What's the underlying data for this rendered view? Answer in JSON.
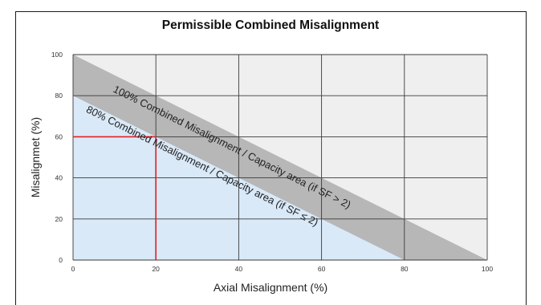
{
  "chart_data": {
    "type": "area",
    "title": "Permissible Combined Misalignment",
    "xlabel": "Axial Misalignment (%)",
    "ylabel": "Misalignmet (%)",
    "xlim": [
      0,
      100
    ],
    "ylim": [
      0,
      100
    ],
    "x_ticks": [
      0,
      20,
      40,
      60,
      80,
      100
    ],
    "y_ticks": [
      0,
      20,
      40,
      60,
      80,
      100
    ],
    "grid": true,
    "series": [
      {
        "name": "100% Combined Misalignment / Capacity area (if SF > 2)",
        "x": [
          0,
          100
        ],
        "y": [
          100,
          0
        ],
        "color": "#b7b7b7"
      },
      {
        "name": "80% Combined Misalignment / Capacity area (if SF ≤ 2)",
        "x": [
          0,
          80
        ],
        "y": [
          80,
          0
        ],
        "color": "#d9e9f8"
      }
    ],
    "annotations": [
      {
        "type": "reference_point",
        "x": 20,
        "y": 60,
        "color": "#e02020"
      }
    ]
  },
  "colors": {
    "outside_region": "#efefef",
    "full_capacity_band": "#b7b7b7",
    "reduced_capacity_region": "#d9e9f8",
    "reference_lines": "#e02020"
  }
}
